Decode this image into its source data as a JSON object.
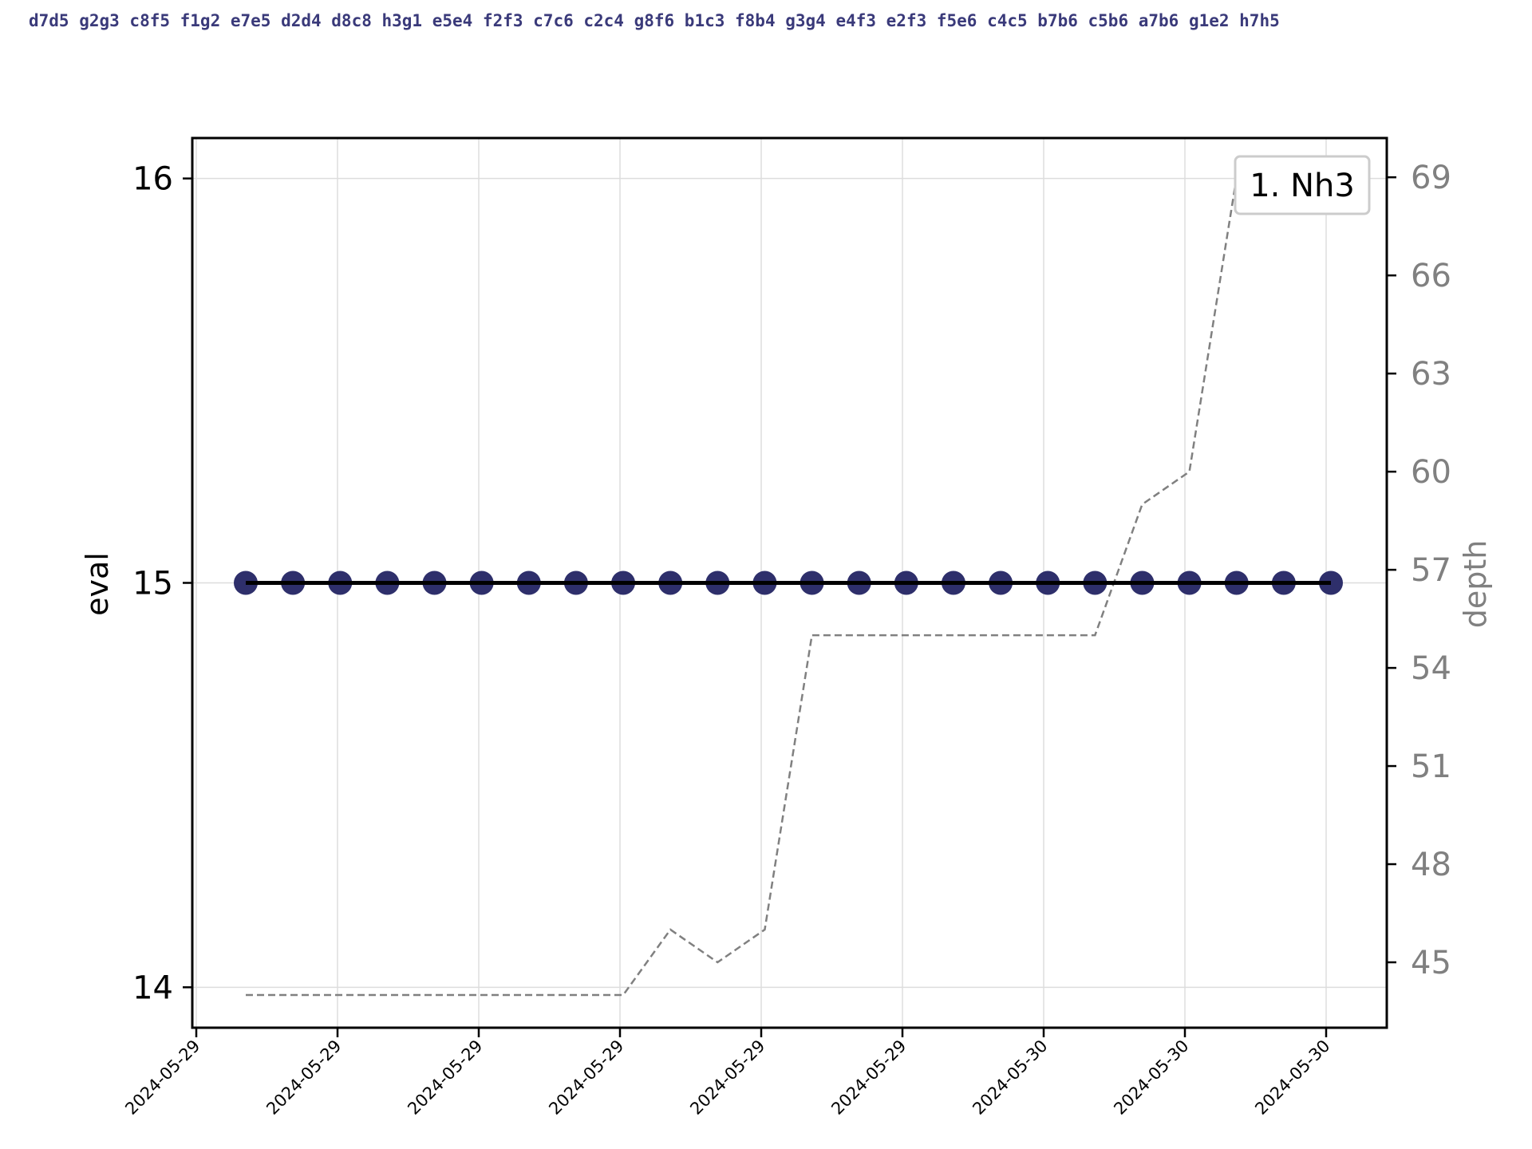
{
  "header": {
    "pv_line": "d7d5 g2g3 c8f5 f1g2 e7e5 d2d4 d8c8 h3g1 e5e4 f2f3 c7c6 c2c4 g8f6 b1c3 f8b4 g3g4 e4f3 e2f3 f5e6 c4c5 b7b6 c5b6 a7b6 g1e2 h7h5"
  },
  "chart_data": {
    "type": "line",
    "title": "",
    "xlabel": "",
    "ylabel_left": "eval",
    "ylabel_right": "depth",
    "legend": {
      "label": "1. Nh3",
      "placement": "top-right"
    },
    "grid": true,
    "colors": {
      "eval_marker": "#2e2f6b",
      "eval_line": "#000000",
      "depth_line": "#808080",
      "pv_text": "#3a3a7a"
    },
    "x_ticks": [
      "2024-05-29",
      "2024-05-29",
      "2024-05-29",
      "2024-05-29",
      "2024-05-29",
      "2024-05-29",
      "2024-05-30",
      "2024-05-30",
      "2024-05-30"
    ],
    "y_left": {
      "ticks": [
        14,
        15,
        16
      ],
      "range": [
        13.9,
        16.1
      ]
    },
    "y_right": {
      "ticks": [
        45,
        48,
        51,
        54,
        57,
        60,
        63,
        66,
        69
      ],
      "range": [
        43.0,
        70.2
      ]
    },
    "series": [
      {
        "name": "eval",
        "axis": "left",
        "values": [
          15,
          15,
          15,
          15,
          15,
          15,
          15,
          15,
          15,
          15,
          15,
          15,
          15,
          15,
          15,
          15,
          15,
          15,
          15,
          15,
          15,
          15,
          15,
          15
        ]
      },
      {
        "name": "depth",
        "axis": "right",
        "style": "dashed",
        "values": [
          44,
          44,
          44,
          44,
          44,
          44,
          44,
          44,
          44,
          46,
          45,
          46,
          55,
          55,
          55,
          55,
          55,
          55,
          55,
          59,
          60,
          69,
          69,
          69
        ]
      }
    ]
  }
}
